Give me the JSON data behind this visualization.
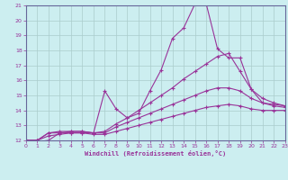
{
  "xlabel": "Windchill (Refroidissement éolien,°C)",
  "bg_color": "#cceef0",
  "grid_color": "#aacccc",
  "line_color": "#993399",
  "spine_color": "#666699",
  "xmin": 0,
  "xmax": 23,
  "ymin": 12,
  "ymax": 21,
  "series": [
    {
      "x": [
        0,
        1,
        2,
        3,
        4,
        5,
        6,
        7,
        8,
        9,
        10,
        11,
        12,
        13,
        14,
        15,
        16,
        17,
        18,
        19,
        20,
        21,
        22,
        23
      ],
      "y": [
        12,
        11.9,
        12.0,
        12.5,
        12.5,
        12.5,
        12.5,
        15.3,
        14.1,
        13.5,
        13.8,
        15.3,
        16.7,
        18.8,
        19.5,
        21.1,
        21.1,
        18.1,
        17.5,
        17.5,
        15.4,
        14.5,
        14.3,
        14.2
      ]
    },
    {
      "x": [
        0,
        1,
        2,
        3,
        4,
        5,
        6,
        7,
        8,
        9,
        10,
        11,
        12,
        13,
        14,
        15,
        16,
        17,
        18,
        19,
        20,
        21,
        22,
        23
      ],
      "y": [
        12,
        12,
        12.5,
        12.6,
        12.6,
        12.6,
        12.5,
        12.6,
        13.1,
        13.5,
        14.0,
        14.5,
        15.0,
        15.5,
        16.1,
        16.6,
        17.1,
        17.6,
        17.8,
        16.6,
        15.4,
        14.8,
        14.5,
        14.3
      ]
    },
    {
      "x": [
        0,
        1,
        2,
        3,
        4,
        5,
        6,
        7,
        8,
        9,
        10,
        11,
        12,
        13,
        14,
        15,
        16,
        17,
        18,
        19,
        20,
        21,
        22,
        23
      ],
      "y": [
        12,
        12,
        12.5,
        12.5,
        12.6,
        12.6,
        12.5,
        12.5,
        12.9,
        13.2,
        13.5,
        13.8,
        14.1,
        14.4,
        14.7,
        15.0,
        15.3,
        15.5,
        15.5,
        15.3,
        14.8,
        14.5,
        14.4,
        14.3
      ]
    },
    {
      "x": [
        0,
        1,
        2,
        3,
        4,
        5,
        6,
        7,
        8,
        9,
        10,
        11,
        12,
        13,
        14,
        15,
        16,
        17,
        18,
        19,
        20,
        21,
        22,
        23
      ],
      "y": [
        12,
        12,
        12.3,
        12.4,
        12.5,
        12.5,
        12.4,
        12.4,
        12.6,
        12.8,
        13.0,
        13.2,
        13.4,
        13.6,
        13.8,
        14.0,
        14.2,
        14.3,
        14.4,
        14.3,
        14.1,
        14.0,
        14.0,
        14.0
      ]
    }
  ]
}
